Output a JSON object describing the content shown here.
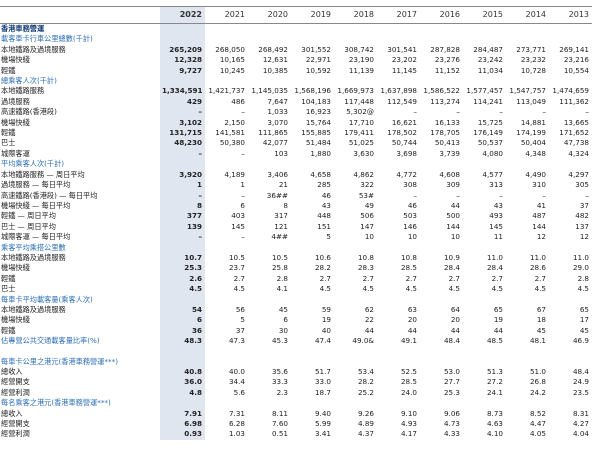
{
  "table": {
    "columns": [
      "2022",
      "2021",
      "2020",
      "2019",
      "2018",
      "2017",
      "2016",
      "2015",
      "2014",
      "2013"
    ],
    "blocks": [
      {
        "title": "香港車務營運",
        "groups": [
          {
            "subheading": "載客車卡行車公里總數(千計)",
            "rows": [
              {
                "label": "本地鐵路及過境服務",
                "values": [
                  "265,209",
                  "268,050",
                  "268,492",
                  "301,552",
                  "308,742",
                  "301,541",
                  "287,828",
                  "284,487",
                  "273,771",
                  "269,141"
                ]
              },
              {
                "label": "機場快綫",
                "values": [
                  "12,328",
                  "10,165",
                  "12,631",
                  "22,971",
                  "23,190",
                  "23,202",
                  "23,276",
                  "23,242",
                  "23,232",
                  "23,216"
                ]
              },
              {
                "label": "輕鐵",
                "values": [
                  "9,727",
                  "10,245",
                  "10,385",
                  "10,592",
                  "11,139",
                  "11,145",
                  "11,152",
                  "11,034",
                  "10,728",
                  "10,554"
                ]
              }
            ]
          },
          {
            "subheading": "總乘客人次(千計)",
            "rows": [
              {
                "label": "本地鐵路服務",
                "values": [
                  "1,334,591",
                  "1,421,737",
                  "1,145,035",
                  "1,568,196",
                  "1,669,973",
                  "1,637,898",
                  "1,586,522",
                  "1,577,457",
                  "1,547,757",
                  "1,474,659"
                ]
              },
              {
                "label": "過境服務",
                "values": [
                  "429",
                  "486",
                  "7,647",
                  "104,183",
                  "117,448",
                  "112,549",
                  "113,274",
                  "114,241",
                  "113,049",
                  "111,362"
                ]
              },
              {
                "label": "高速鐵路(香港段)",
                "values": [
                  "–",
                  "–",
                  "1,033",
                  "16,923",
                  "5,302@",
                  "–",
                  "–",
                  "–",
                  "–",
                  "–"
                ]
              },
              {
                "label": "機場快綫",
                "values": [
                  "3,102",
                  "2,150",
                  "3,070",
                  "15,764",
                  "17,710",
                  "16,621",
                  "16,133",
                  "15,725",
                  "14,881",
                  "13,665"
                ]
              },
              {
                "label": "輕鐵",
                "values": [
                  "131,715",
                  "141,581",
                  "111,865",
                  "155,885",
                  "179,411",
                  "178,502",
                  "178,705",
                  "176,149",
                  "174,199",
                  "171,652"
                ]
              },
              {
                "label": "巴士",
                "values": [
                  "48,230",
                  "50,380",
                  "42,077",
                  "51,484",
                  "51,025",
                  "50,744",
                  "50,413",
                  "50,537",
                  "50,404",
                  "47,738"
                ]
              },
              {
                "label": "城際客運",
                "values": [
                  "–",
                  "–",
                  "103",
                  "1,880",
                  "3,630",
                  "3,698",
                  "3,739",
                  "4,080",
                  "4,348",
                  "4,324"
                ]
              }
            ]
          },
          {
            "subheading": "平均乘客人次(千計)",
            "rows": [
              {
                "label": "本地鐵路服務 — 周日平均",
                "values": [
                  "3,920",
                  "4,189",
                  "3,406",
                  "4,658",
                  "4,862",
                  "4,772",
                  "4,608",
                  "4,577",
                  "4,490",
                  "4,297"
                ]
              },
              {
                "label": "過境服務 — 每日平均",
                "values": [
                  "1",
                  "1",
                  "21",
                  "285",
                  "322",
                  "308",
                  "309",
                  "313",
                  "310",
                  "305"
                ]
              },
              {
                "label": "高速鐵路(香港段) — 每日平均",
                "values": [
                  "–",
                  "–",
                  "36##",
                  "46",
                  "53#",
                  "–",
                  "–",
                  "–",
                  "–",
                  "–"
                ]
              },
              {
                "label": "機場快綫 — 每日平均",
                "values": [
                  "8",
                  "6",
                  "8",
                  "43",
                  "49",
                  "46",
                  "44",
                  "43",
                  "41",
                  "37"
                ]
              },
              {
                "label": "輕鐵 — 周日平均",
                "values": [
                  "377",
                  "403",
                  "317",
                  "448",
                  "506",
                  "503",
                  "500",
                  "493",
                  "487",
                  "482"
                ]
              },
              {
                "label": "巴士 — 周日平均",
                "values": [
                  "139",
                  "145",
                  "121",
                  "151",
                  "147",
                  "146",
                  "144",
                  "145",
                  "144",
                  "137"
                ]
              },
              {
                "label": "城際客運 — 每日平均",
                "values": [
                  "–",
                  "–",
                  "4##",
                  "5",
                  "10",
                  "10",
                  "10",
                  "11",
                  "12",
                  "12"
                ]
              }
            ]
          },
          {
            "subheading": "乘客平均乘搭公里數",
            "rows": [
              {
                "label": "本地鐵路及過境服務",
                "values": [
                  "10.7",
                  "10.5",
                  "10.5",
                  "10.6",
                  "10.8",
                  "10.8",
                  "10.9",
                  "11.0",
                  "11.0",
                  "11.0"
                ]
              },
              {
                "label": "機場快綫",
                "values": [
                  "25.3",
                  "23.7",
                  "25.8",
                  "28.2",
                  "28.3",
                  "28.5",
                  "28.4",
                  "28.4",
                  "28.6",
                  "29.0"
                ]
              },
              {
                "label": "輕鐵",
                "values": [
                  "2.6",
                  "2.7",
                  "2.8",
                  "2.7",
                  "2.7",
                  "2.7",
                  "2.7",
                  "2.7",
                  "2.7",
                  "2.8"
                ]
              },
              {
                "label": "巴士",
                "values": [
                  "4.5",
                  "4.5",
                  "4.1",
                  "4.5",
                  "4.5",
                  "4.5",
                  "4.5",
                  "4.5",
                  "4.5",
                  "4.5"
                ]
              }
            ]
          },
          {
            "subheading": "每車卡平均載客量(乘客人次)",
            "rows": [
              {
                "label": "本地鐵路及過境服務",
                "values": [
                  "54",
                  "56",
                  "45",
                  "59",
                  "62",
                  "63",
                  "64",
                  "65",
                  "67",
                  "65"
                ]
              },
              {
                "label": "機場快綫",
                "values": [
                  "6",
                  "5",
                  "6",
                  "19",
                  "22",
                  "20",
                  "20",
                  "19",
                  "18",
                  "17"
                ]
              },
              {
                "label": "輕鐵",
                "values": [
                  "36",
                  "37",
                  "30",
                  "40",
                  "44",
                  "44",
                  "44",
                  "44",
                  "45",
                  "45"
                ]
              }
            ]
          },
          {
            "subheading": "佔專營公共交通載客量比率(%)",
            "values": [
              "48.3",
              "47.3",
              "45.3",
              "47.4",
              "49.0&",
              "49.1",
              "48.4",
              "48.5",
              "48.1",
              "46.9"
            ]
          }
        ]
      },
      {
        "groups": [
          {
            "subheading": "每車卡公里之港元(香港車務營運***)",
            "rows": [
              {
                "label": "總收入",
                "values": [
                  "40.8",
                  "40.0",
                  "35.6",
                  "51.7",
                  "53.4",
                  "52.5",
                  "53.0",
                  "51.3",
                  "51.0",
                  "48.4"
                ]
              },
              {
                "label": "經營開支",
                "values": [
                  "36.0",
                  "34.4",
                  "33.3",
                  "33.0",
                  "28.2",
                  "28.5",
                  "27.7",
                  "27.2",
                  "26.8",
                  "24.9"
                ]
              },
              {
                "label": "經營利潤",
                "values": [
                  "4.8",
                  "5.6",
                  "2.3",
                  "18.7",
                  "25.2",
                  "24.0",
                  "25.3",
                  "24.1",
                  "24.2",
                  "23.5"
                ]
              }
            ]
          },
          {
            "subheading": "每名乘客之港元(香港車務營運***)",
            "rows": [
              {
                "label": "總收入",
                "values": [
                  "7.91",
                  "7.31",
                  "8.11",
                  "9.40",
                  "9.26",
                  "9.10",
                  "9.06",
                  "8.73",
                  "8.52",
                  "8.31"
                ]
              },
              {
                "label": "經營開支",
                "values": [
                  "6.98",
                  "6.28",
                  "7.60",
                  "5.99",
                  "4.89",
                  "4.93",
                  "4.73",
                  "4.63",
                  "4.47",
                  "4.27"
                ]
              },
              {
                "label": "經營利潤",
                "values": [
                  "0.93",
                  "1.03",
                  "0.51",
                  "3.41",
                  "4.37",
                  "4.17",
                  "4.33",
                  "4.10",
                  "4.05",
                  "4.04"
                ]
              }
            ]
          }
        ]
      }
    ]
  }
}
